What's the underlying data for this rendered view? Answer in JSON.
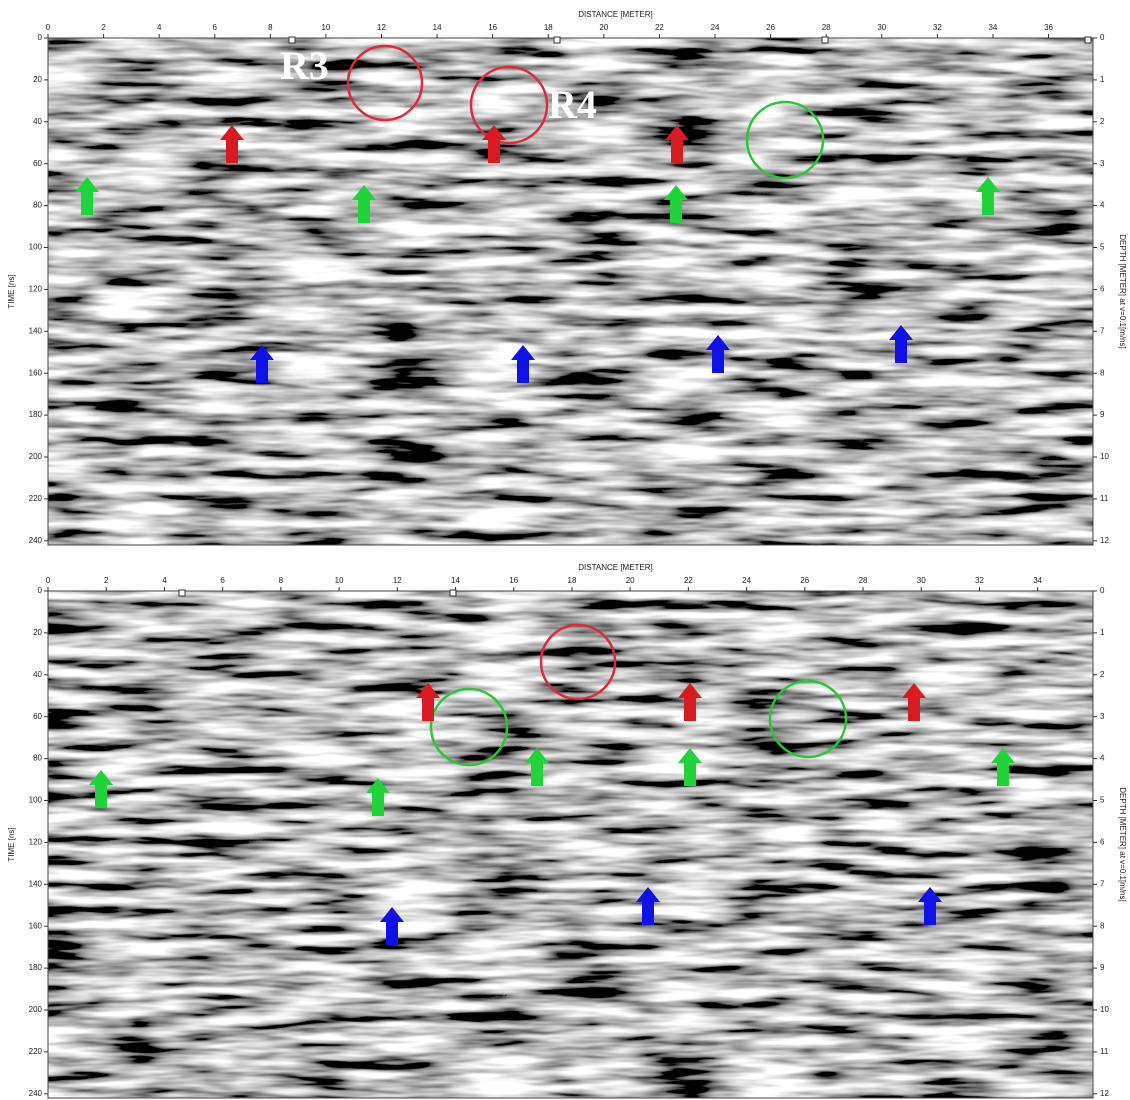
{
  "chart_data": [
    {
      "type": "radargram",
      "x_label": "DISTANCE [METER]",
      "y_label": "TIME [ns]",
      "y2_label": "DEPTH [METER] at v=0.1[m/ns]",
      "xlim": [
        0,
        37.6
      ],
      "xticks": [
        0,
        2,
        4,
        6,
        8,
        10,
        12,
        14,
        16,
        18,
        20,
        22,
        24,
        26,
        28,
        30,
        32,
        34,
        36
      ],
      "ylim": [
        0,
        242
      ],
      "yticks": [
        0,
        20,
        40,
        60,
        80,
        100,
        120,
        140,
        160,
        180,
        200,
        220,
        240
      ],
      "y2lim": [
        0,
        12.1
      ],
      "y2ticks": [
        0,
        1,
        2,
        3,
        4,
        5,
        6,
        7,
        8,
        9,
        10,
        11,
        12
      ],
      "annotations": [
        "R3",
        "R4"
      ]
    },
    {
      "type": "radargram",
      "x_label": "DISTANCE [METER]",
      "y_label": "TIME [ns]",
      "y2_label": "DEPTH [METER] at v=0.1[m/ns]",
      "xlim": [
        0,
        35.9
      ],
      "xticks": [
        0,
        2,
        4,
        6,
        8,
        10,
        12,
        14,
        16,
        18,
        20,
        22,
        24,
        26,
        28,
        30,
        32,
        34
      ],
      "ylim": [
        0,
        242
      ],
      "yticks": [
        0,
        20,
        40,
        60,
        80,
        100,
        120,
        140,
        160,
        180,
        200,
        220,
        240
      ],
      "y2lim": [
        0,
        12.1
      ],
      "y2ticks": [
        0,
        1,
        2,
        3,
        4,
        5,
        6,
        7,
        8,
        9,
        10,
        11,
        12
      ]
    }
  ]
}
